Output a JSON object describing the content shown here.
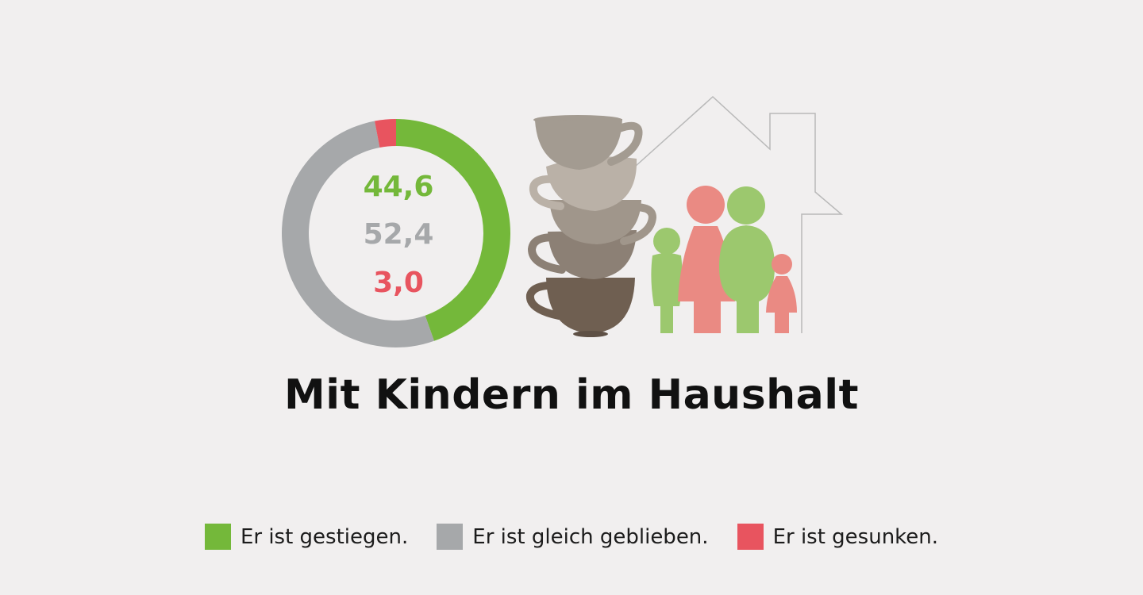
{
  "chart_data": {
    "type": "pie",
    "title": "Mit Kindern im Haushalt",
    "categories": [
      "Er ist gestiegen.",
      "Er ist gleich geblieben.",
      "Er ist gesunken."
    ],
    "values": [
      44.6,
      52.4,
      3.0
    ],
    "value_labels": [
      "44,6",
      "52,4",
      "3,0"
    ],
    "colors": [
      "#74b83a",
      "#a6a8aa",
      "#e8545f"
    ],
    "donut": true,
    "legend_position": "bottom"
  },
  "legend": {
    "items": [
      {
        "label": "Er ist gestiegen.",
        "color": "#74b83a"
      },
      {
        "label": "Er ist gleich geblieben.",
        "color": "#a6a8aa"
      },
      {
        "label": "Er ist gesunken.",
        "color": "#e8545f"
      }
    ]
  },
  "illustration": {
    "icons": [
      "coffee-cup-stack-icon",
      "house-outline-icon",
      "family-icon"
    ],
    "cup_colors": [
      "#a39b91",
      "#bab1a7",
      "#a0968b",
      "#8c8075",
      "#6f5f51"
    ],
    "family_colors": [
      "#9cc86e",
      "#ea8a83"
    ],
    "house_line_color": "#b9b9b9"
  }
}
